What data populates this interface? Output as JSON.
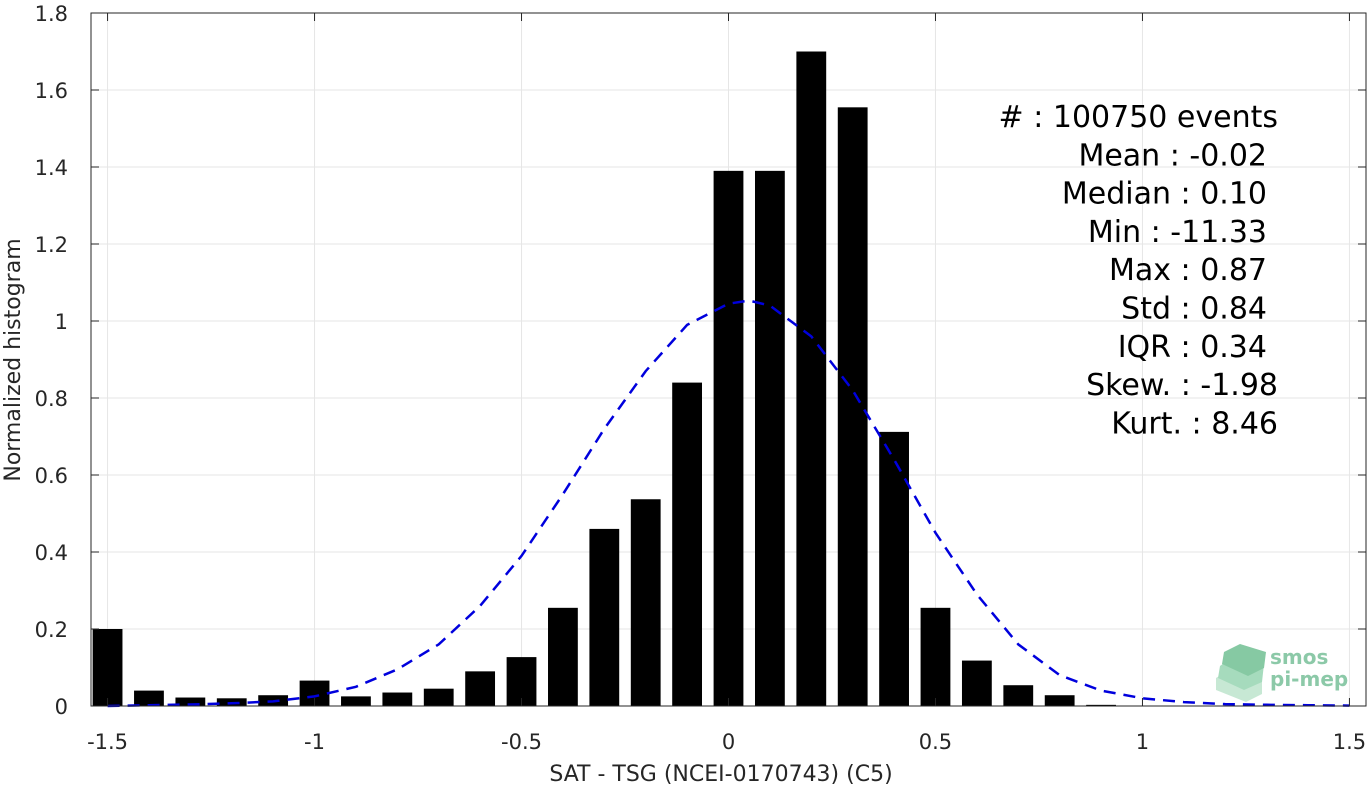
{
  "chart_data": {
    "type": "bar",
    "xlabel": "SAT - TSG (NCEI-0170743) (C5)",
    "ylabel": "Normalized histogram",
    "xlim": [
      -1.54,
      1.54
    ],
    "ylim": [
      0,
      1.8
    ],
    "xticks": [
      -1.5,
      -1,
      -0.5,
      0,
      0.5,
      1,
      1.5
    ],
    "xtick_labels": [
      "-1.5",
      "-1",
      "-0.5",
      "0",
      "0.5",
      "1",
      "1.5"
    ],
    "yticks": [
      0,
      0.2,
      0.4,
      0.6,
      0.8,
      1,
      1.2,
      1.4,
      1.6,
      1.8
    ],
    "ytick_labels": [
      "0",
      "0.2",
      "0.4",
      "0.6",
      "0.8",
      "1",
      "1.2",
      "1.4",
      "1.6",
      "1.8"
    ],
    "grid": true,
    "bar_color": "#000000",
    "curve_color": "#0000dd",
    "bars": {
      "x": [
        -1.5,
        -1.4,
        -1.3,
        -1.2,
        -1.1,
        -1.0,
        -0.9,
        -0.8,
        -0.7,
        -0.6,
        -0.5,
        -0.4,
        -0.3,
        -0.2,
        -0.1,
        0.0,
        0.1,
        0.2,
        0.3,
        0.4,
        0.5,
        0.6,
        0.7,
        0.8,
        0.9
      ],
      "values": [
        0.2,
        0.04,
        0.022,
        0.02,
        0.028,
        0.066,
        0.025,
        0.035,
        0.045,
        0.09,
        0.127,
        0.255,
        0.46,
        0.537,
        0.84,
        1.39,
        1.39,
        1.7,
        1.555,
        0.712,
        0.255,
        0.118,
        0.054,
        0.028,
        0.003
      ]
    },
    "fit_curve": {
      "style": "dashed",
      "x": [
        -1.5,
        -1.4,
        -1.3,
        -1.2,
        -1.1,
        -1.0,
        -0.9,
        -0.8,
        -0.7,
        -0.6,
        -0.5,
        -0.4,
        -0.3,
        -0.2,
        -0.1,
        0.0,
        0.05,
        0.1,
        0.2,
        0.3,
        0.4,
        0.5,
        0.6,
        0.7,
        0.8,
        0.9,
        1.0,
        1.1,
        1.2,
        1.3,
        1.4,
        1.5
      ],
      "y": [
        0.0,
        0.002,
        0.004,
        0.007,
        0.012,
        0.025,
        0.05,
        0.095,
        0.16,
        0.26,
        0.39,
        0.55,
        0.72,
        0.87,
        0.99,
        1.045,
        1.053,
        1.04,
        0.96,
        0.82,
        0.64,
        0.45,
        0.29,
        0.16,
        0.08,
        0.04,
        0.02,
        0.01,
        0.005,
        0.003,
        0.002,
        0.001
      ]
    },
    "stats": [
      {
        "label": "#  : 100750 events"
      },
      {
        "label": "Mean : -0.02"
      },
      {
        "label": "Median : 0.10"
      },
      {
        "label": "Min : -11.33"
      },
      {
        "label": "Max : 0.87"
      },
      {
        "label": "Std : 0.84"
      },
      {
        "label": "IQR : 0.34"
      },
      {
        "label": "Skew. : -1.98"
      },
      {
        "label": "Kurt. : 8.46"
      }
    ]
  },
  "logo": {
    "line1": "smos",
    "line2": "pi-mep"
  }
}
